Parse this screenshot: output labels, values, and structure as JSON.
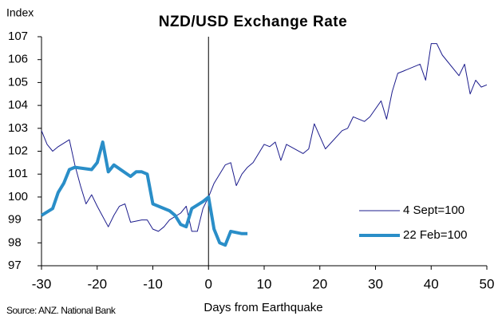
{
  "chart_data": {
    "type": "line",
    "title": "NZD/USD Exchange Rate",
    "y_label": "Index",
    "x_label": "Days from Earthquake",
    "source": "Source: ANZ. National Bank",
    "xlim": [
      -30,
      50
    ],
    "xticks": [
      -30,
      -20,
      -10,
      0,
      10,
      20,
      30,
      40,
      50
    ],
    "ylim": [
      97,
      107
    ],
    "yticks": [
      97,
      98,
      99,
      100,
      101,
      102,
      103,
      104,
      105,
      106,
      107
    ],
    "reference_line_x": 0,
    "legend": "right",
    "series": [
      {
        "name": "4 Sept=100",
        "color": "#1c1c8c",
        "line_width": 1,
        "x": [
          -30,
          -29,
          -28,
          -27,
          -25,
          -24,
          -23,
          -22,
          -21,
          -20,
          -18,
          -17,
          -16,
          -15,
          -14,
          -12,
          -11,
          -10,
          -9,
          -8,
          -7,
          -5,
          -4,
          -3,
          -2,
          -1,
          0,
          1,
          3,
          4,
          5,
          6,
          7,
          8,
          10,
          11,
          12,
          13,
          14,
          17,
          18,
          19,
          21,
          24,
          25,
          26,
          27,
          28,
          29,
          31,
          32,
          33,
          34,
          35,
          38,
          39,
          40,
          41,
          42,
          45,
          46,
          47,
          48,
          49,
          50
        ],
        "values": [
          102.9,
          102.3,
          102.0,
          102.2,
          102.5,
          101.4,
          100.5,
          99.7,
          100.1,
          99.6,
          98.7,
          99.2,
          99.6,
          99.7,
          98.9,
          99.0,
          99.0,
          98.6,
          98.5,
          98.7,
          99.0,
          99.3,
          99.6,
          98.5,
          98.5,
          99.5,
          100.0,
          100.6,
          101.4,
          101.5,
          100.5,
          101.0,
          101.3,
          101.5,
          102.3,
          102.2,
          102.4,
          101.6,
          102.3,
          101.9,
          102.1,
          103.2,
          102.1,
          102.9,
          103.0,
          103.5,
          103.4,
          103.3,
          103.5,
          104.2,
          103.4,
          104.6,
          105.4,
          105.5,
          105.8,
          105.1,
          106.7,
          106.7,
          106.2,
          105.3,
          105.8,
          104.5,
          105.1,
          104.8,
          104.9
        ]
      },
      {
        "name": "22 Feb=100",
        "color": "#2a8ec8",
        "line_width": 4,
        "x": [
          -30,
          -28,
          -27,
          -26,
          -25,
          -24,
          -21,
          -20,
          -19,
          -18,
          -17,
          -14,
          -13,
          -12,
          -11,
          -10,
          -7,
          -6,
          -5,
          -4,
          -3,
          -1,
          0,
          1,
          2,
          3,
          4,
          6,
          7
        ],
        "values": [
          99.2,
          99.5,
          100.2,
          100.6,
          101.2,
          101.3,
          101.2,
          101.5,
          102.4,
          101.1,
          101.4,
          100.9,
          101.1,
          101.1,
          101.0,
          99.7,
          99.4,
          99.2,
          98.8,
          98.7,
          99.5,
          99.8,
          100.0,
          98.6,
          98.0,
          97.9,
          98.5,
          98.4,
          98.4
        ]
      }
    ]
  }
}
